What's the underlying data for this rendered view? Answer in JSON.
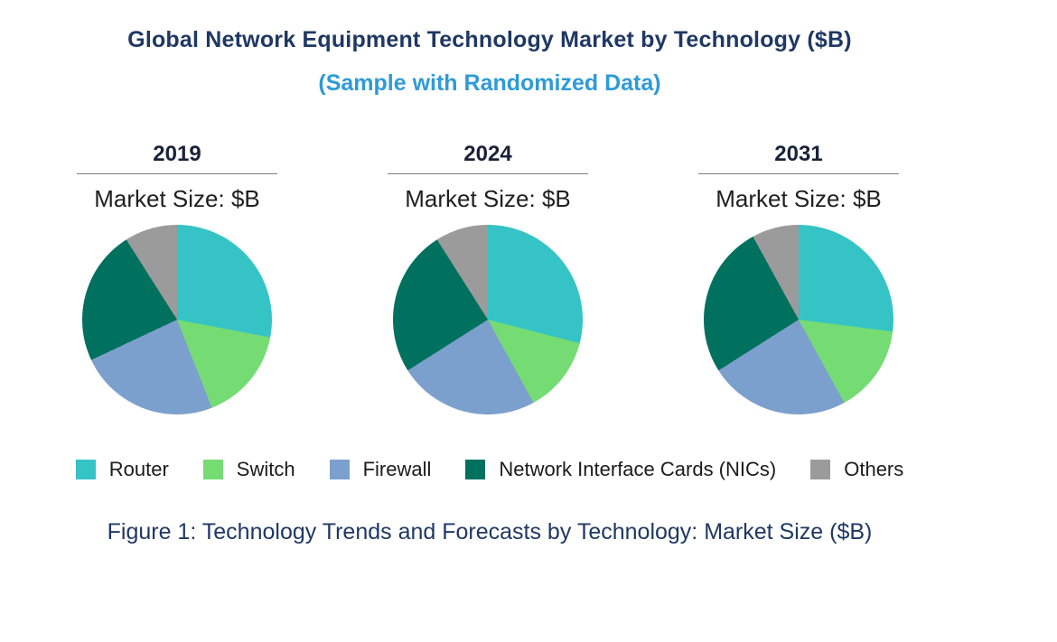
{
  "chart_data": {
    "type": "pie",
    "title": "Global Network Equipment Technology Market by Technology ($B)",
    "subtitle": "(Sample with Randomized Data)",
    "market_size_label": "Market Size: $B",
    "unit": "$B",
    "legend_position": "bottom",
    "categories": [
      "Router",
      "Switch",
      "Firewall",
      "Network Interface Cards (NICs)",
      "Others"
    ],
    "colors": [
      "#35C3C6",
      "#75DC74",
      "#7CA0CD",
      "#00715F",
      "#9B9B9B"
    ],
    "pies": [
      {
        "year": "2019",
        "values": [
          28,
          16,
          24,
          23,
          9
        ]
      },
      {
        "year": "2024",
        "values": [
          29,
          13,
          24,
          25,
          9
        ]
      },
      {
        "year": "2031",
        "values": [
          27,
          15,
          24,
          26,
          8
        ]
      }
    ]
  },
  "caption": "Figure 1: Technology Trends and Forecasts by Technology: Market Size ($B)"
}
